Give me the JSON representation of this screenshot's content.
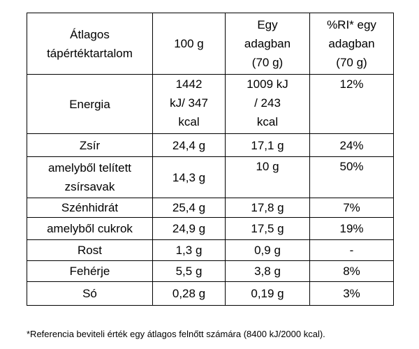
{
  "table": {
    "header": [
      "Átlagos\ntápértéktartalom",
      "100 g",
      "Egy\nadagban\n(70 g)",
      "%RI* egy\nadagban\n(70 g)"
    ],
    "rows": [
      [
        "Energia",
        "1442\nkJ/ 347\nkcal",
        "1009 kJ\n/ 243\nkcal",
        "12%"
      ],
      [
        "Zsír",
        "24,4 g",
        "17,1 g",
        "24%"
      ],
      [
        "amelyből telített\nzsírsavak",
        "14,3 g",
        "10 g",
        "50%"
      ],
      [
        "Szénhidrát",
        "25,4 g",
        "17,8 g",
        "7%"
      ],
      [
        "amelyből cukrok",
        "24,9 g",
        "17,5 g",
        "19%"
      ],
      [
        "Rost",
        "1,3 g",
        "0,9 g",
        "-"
      ],
      [
        "Fehérje",
        "5,5 g",
        "3,8 g",
        "8%"
      ],
      [
        "Só",
        "0,28 g",
        "0,19 g",
        "3%"
      ]
    ]
  },
  "footnote": "*Referencia beviteli érték egy átlagos felnőtt számára (8400 kJ/2000 kcal)."
}
